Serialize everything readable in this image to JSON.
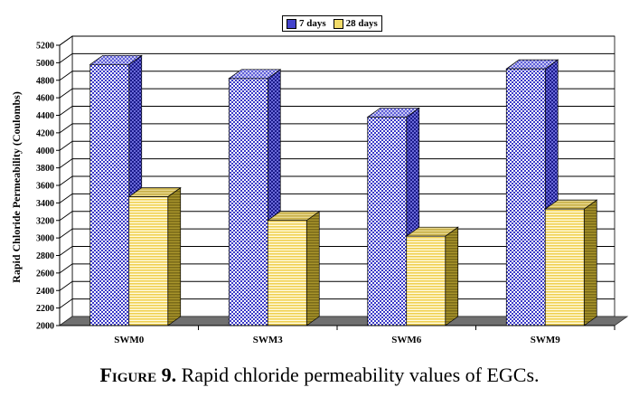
{
  "chart_data": {
    "type": "bar",
    "categories": [
      "SWM0",
      "SWM3",
      "SWM6",
      "SWM9"
    ],
    "series": [
      {
        "name": "7 days",
        "values": [
          4980,
          4820,
          4380,
          4930
        ]
      },
      {
        "name": "28 days",
        "values": [
          3470,
          3200,
          3020,
          3330
        ]
      }
    ],
    "ylabel": "Rapid Chloride Permeability (Coulombs)",
    "xlabel": "",
    "ylim": [
      2000,
      5200
    ],
    "yticks": [
      2000,
      2200,
      2400,
      2600,
      2800,
      3000,
      3200,
      3400,
      3600,
      3800,
      4000,
      4200,
      4400,
      4600,
      4800,
      5000,
      5200
    ],
    "grid": true,
    "legend_position": "top-center",
    "three_d": true
  },
  "colors": {
    "series_7_days": "#4444cc",
    "series_28_days": "#f2dc6a",
    "floor": "#707070",
    "grid": "#000000"
  },
  "caption": {
    "label": "Figure 9.",
    "text": " Rapid chloride permeability values of EGCs."
  }
}
